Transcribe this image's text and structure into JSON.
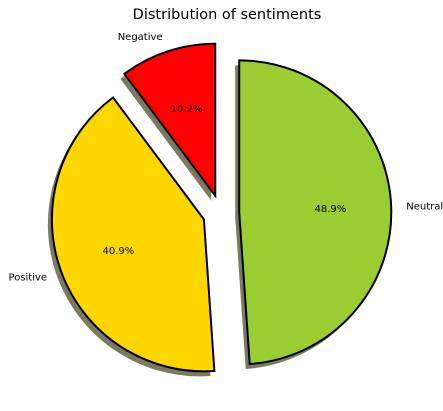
{
  "chart_data": {
    "type": "pie",
    "title": "Distribution of sentiments",
    "slices": [
      {
        "label": "Negative",
        "value": 10.2,
        "pct_label": "10.2%",
        "color": "#ff0000",
        "explode": true
      },
      {
        "label": "Positive",
        "value": 40.9,
        "pct_label": "40.9%",
        "color": "#ffd700",
        "explode": true
      },
      {
        "label": "Neutral",
        "value": 48.9,
        "pct_label": "48.9%",
        "color": "#9acd32",
        "explode": true
      }
    ],
    "shadow": true,
    "legend": "none",
    "grid": false
  }
}
